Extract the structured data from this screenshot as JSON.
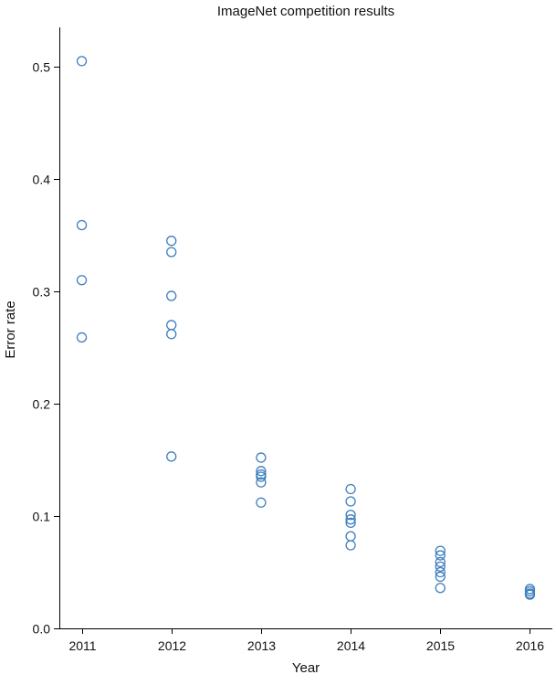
{
  "chart_data": {
    "type": "scatter",
    "title": "ImageNet competition results",
    "xlabel": "Year",
    "ylabel": "Error rate",
    "x_ticks": [
      "2011",
      "2012",
      "2013",
      "2014",
      "2015",
      "2016"
    ],
    "y_ticks": [
      "0.0",
      "0.1",
      "0.2",
      "0.3",
      "0.4",
      "0.5"
    ],
    "xlim": [
      2010.75,
      2016.25
    ],
    "ylim": [
      0,
      0.535
    ],
    "grid": false,
    "marker": "open-circle",
    "marker_color": "#3f7fbf",
    "series": [
      {
        "points": [
          {
            "x": 2011,
            "y": 0.505
          },
          {
            "x": 2011,
            "y": 0.359
          },
          {
            "x": 2011,
            "y": 0.31
          },
          {
            "x": 2011,
            "y": 0.259
          },
          {
            "x": 2012,
            "y": 0.345
          },
          {
            "x": 2012,
            "y": 0.335
          },
          {
            "x": 2012,
            "y": 0.296
          },
          {
            "x": 2012,
            "y": 0.27
          },
          {
            "x": 2012,
            "y": 0.262
          },
          {
            "x": 2012,
            "y": 0.153
          },
          {
            "x": 2013,
            "y": 0.152
          },
          {
            "x": 2013,
            "y": 0.14
          },
          {
            "x": 2013,
            "y": 0.137
          },
          {
            "x": 2013,
            "y": 0.135
          },
          {
            "x": 2013,
            "y": 0.13
          },
          {
            "x": 2013,
            "y": 0.112
          },
          {
            "x": 2014,
            "y": 0.124
          },
          {
            "x": 2014,
            "y": 0.113
          },
          {
            "x": 2014,
            "y": 0.101
          },
          {
            "x": 2014,
            "y": 0.097
          },
          {
            "x": 2014,
            "y": 0.094
          },
          {
            "x": 2014,
            "y": 0.082
          },
          {
            "x": 2014,
            "y": 0.074
          },
          {
            "x": 2015,
            "y": 0.069
          },
          {
            "x": 2015,
            "y": 0.065
          },
          {
            "x": 2015,
            "y": 0.059
          },
          {
            "x": 2015,
            "y": 0.055
          },
          {
            "x": 2015,
            "y": 0.05
          },
          {
            "x": 2015,
            "y": 0.046
          },
          {
            "x": 2015,
            "y": 0.036
          },
          {
            "x": 2016,
            "y": 0.035
          },
          {
            "x": 2016,
            "y": 0.033
          },
          {
            "x": 2016,
            "y": 0.031
          },
          {
            "x": 2016,
            "y": 0.03
          }
        ]
      }
    ]
  }
}
